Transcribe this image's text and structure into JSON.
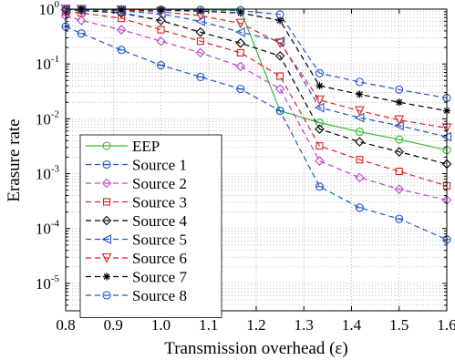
{
  "chart_data": {
    "type": "line",
    "xlabel": "Transmission overhead (ε)",
    "ylabel": "Erasure rate",
    "xlim": [
      0.8,
      1.6
    ],
    "ylim_log10": [
      -5.5,
      0
    ],
    "y_scale": "log",
    "grid": true,
    "legend_position": "bottom-left",
    "x_ticks": [
      0.8,
      0.9,
      1.0,
      1.1,
      1.2,
      1.3,
      1.4,
      1.5,
      1.6
    ],
    "x_tick_labels": [
      "0.8",
      "0.9",
      "1.0",
      "1.1",
      "1.2",
      "1.3",
      "1.4",
      "1.5",
      "1.6"
    ],
    "y_ticks": [
      {
        "base": "10",
        "exp": "0",
        "log": 0
      },
      {
        "base": "10",
        "exp": "-1",
        "log": -1
      },
      {
        "base": "10",
        "exp": "-2",
        "log": -2
      },
      {
        "base": "10",
        "exp": "-3",
        "log": -3
      },
      {
        "base": "10",
        "exp": "-4",
        "log": -4
      },
      {
        "base": "10",
        "exp": "-5",
        "log": -5
      }
    ],
    "series": [
      {
        "name": "EEP",
        "color": "#33bb33",
        "dash": "solid",
        "marker": "circle",
        "x": [
          0.8,
          0.833,
          0.917,
          1.0,
          1.083,
          1.167,
          1.25,
          1.333,
          1.417,
          1.5,
          1.6
        ],
        "y": [
          0.98,
          0.98,
          0.98,
          0.98,
          0.97,
          0.96,
          0.014,
          0.0085,
          0.0058,
          0.0042,
          0.0027
        ]
      },
      {
        "name": "Source 1",
        "color": "#2255cc",
        "dash": "dashed",
        "marker": "circle-bar",
        "x": [
          0.8,
          0.833,
          0.917,
          1.0,
          1.083,
          1.167,
          1.25,
          1.333,
          1.417,
          1.5,
          1.6
        ],
        "y": [
          0.48,
          0.36,
          0.18,
          0.095,
          0.058,
          0.035,
          0.014,
          0.00058,
          0.00024,
          0.00015,
          6.3e-05
        ]
      },
      {
        "name": "Source 2",
        "color": "#bb44cc",
        "dash": "dashed",
        "marker": "diamond",
        "x": [
          0.8,
          0.833,
          0.917,
          1.0,
          1.083,
          1.167,
          1.25,
          1.333,
          1.417,
          1.5,
          1.6
        ],
        "y": [
          0.75,
          0.62,
          0.42,
          0.26,
          0.16,
          0.09,
          0.035,
          0.0017,
          0.00085,
          0.00052,
          0.00033
        ]
      },
      {
        "name": "Source 3",
        "color": "#dd2222",
        "dash": "dashed",
        "marker": "square",
        "x": [
          0.8,
          0.833,
          0.917,
          1.0,
          1.083,
          1.167,
          1.25,
          1.333,
          1.417,
          1.5,
          1.6
        ],
        "y": [
          0.9,
          0.85,
          0.68,
          0.42,
          0.26,
          0.16,
          0.06,
          0.0032,
          0.0018,
          0.0011,
          0.0006
        ]
      },
      {
        "name": "Source 4",
        "color": "#000000",
        "dash": "dashed",
        "marker": "diamond",
        "x": [
          0.8,
          0.833,
          0.917,
          1.0,
          1.083,
          1.167,
          1.25,
          1.333,
          1.417,
          1.5,
          1.6
        ],
        "y": [
          0.97,
          0.95,
          0.85,
          0.62,
          0.38,
          0.24,
          0.14,
          0.0065,
          0.0038,
          0.0025,
          0.0015
        ]
      },
      {
        "name": "Source 5",
        "color": "#2255cc",
        "dash": "dashed",
        "marker": "triangle-left",
        "x": [
          0.8,
          0.833,
          0.917,
          1.0,
          1.083,
          1.167,
          1.25,
          1.333,
          1.417,
          1.5,
          1.6
        ],
        "y": [
          0.98,
          0.97,
          0.93,
          0.82,
          0.6,
          0.38,
          0.26,
          0.016,
          0.0105,
          0.0075,
          0.0047
        ]
      },
      {
        "name": "Source 6",
        "color": "#dd2222",
        "dash": "dashed",
        "marker": "triangle-down",
        "x": [
          0.8,
          0.833,
          0.917,
          1.0,
          1.083,
          1.167,
          1.25,
          1.333,
          1.417,
          1.5,
          1.6
        ],
        "y": [
          0.99,
          0.98,
          0.96,
          0.9,
          0.76,
          0.55,
          0.24,
          0.022,
          0.014,
          0.0095,
          0.0068
        ]
      },
      {
        "name": "Source 7",
        "color": "#000000",
        "dash": "dashed",
        "marker": "star",
        "x": [
          0.8,
          0.833,
          0.917,
          1.0,
          1.083,
          1.167,
          1.25,
          1.333,
          1.417,
          1.5,
          1.6
        ],
        "y": [
          0.99,
          0.99,
          0.98,
          0.96,
          0.92,
          0.85,
          0.62,
          0.04,
          0.028,
          0.02,
          0.014
        ]
      },
      {
        "name": "Source 8",
        "color": "#2255cc",
        "dash": "dashed",
        "marker": "circle",
        "x": [
          0.8,
          0.833,
          0.917,
          1.0,
          1.083,
          1.167,
          1.25,
          1.333,
          1.417,
          1.5,
          1.6
        ],
        "y": [
          0.99,
          0.99,
          0.99,
          0.98,
          0.97,
          0.94,
          0.8,
          0.068,
          0.047,
          0.034,
          0.024
        ]
      }
    ]
  }
}
